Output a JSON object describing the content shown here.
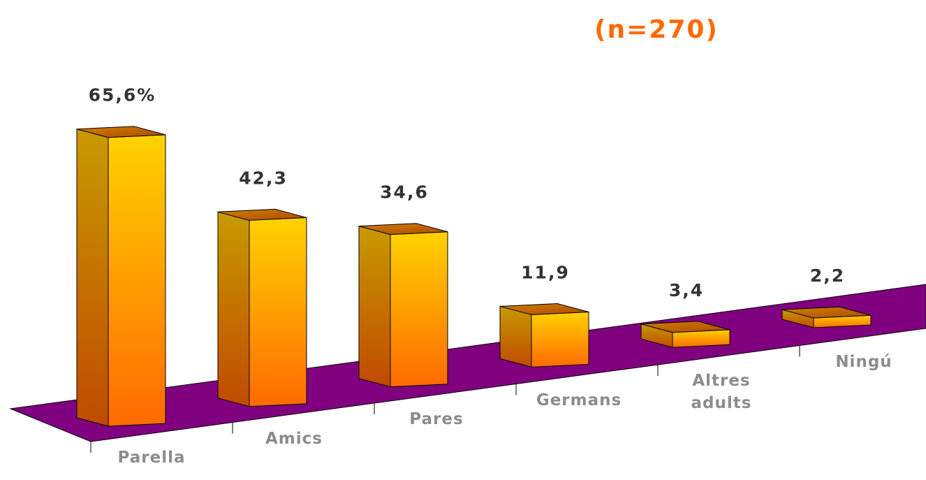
{
  "chart_data": {
    "type": "bar3d",
    "subtitle": "(n=270)",
    "categories": [
      "Parella",
      "Amics",
      "Pares",
      "Germans",
      "Altres adults",
      "Ningú"
    ],
    "values": [
      65.6,
      42.3,
      34.6,
      11.9,
      3.4,
      2.2
    ],
    "value_labels": [
      "65,6%",
      "42,3",
      "34,6",
      "11,9",
      "3,4",
      "2,2"
    ],
    "color": "#ffc800",
    "floor_color": "#800080"
  }
}
